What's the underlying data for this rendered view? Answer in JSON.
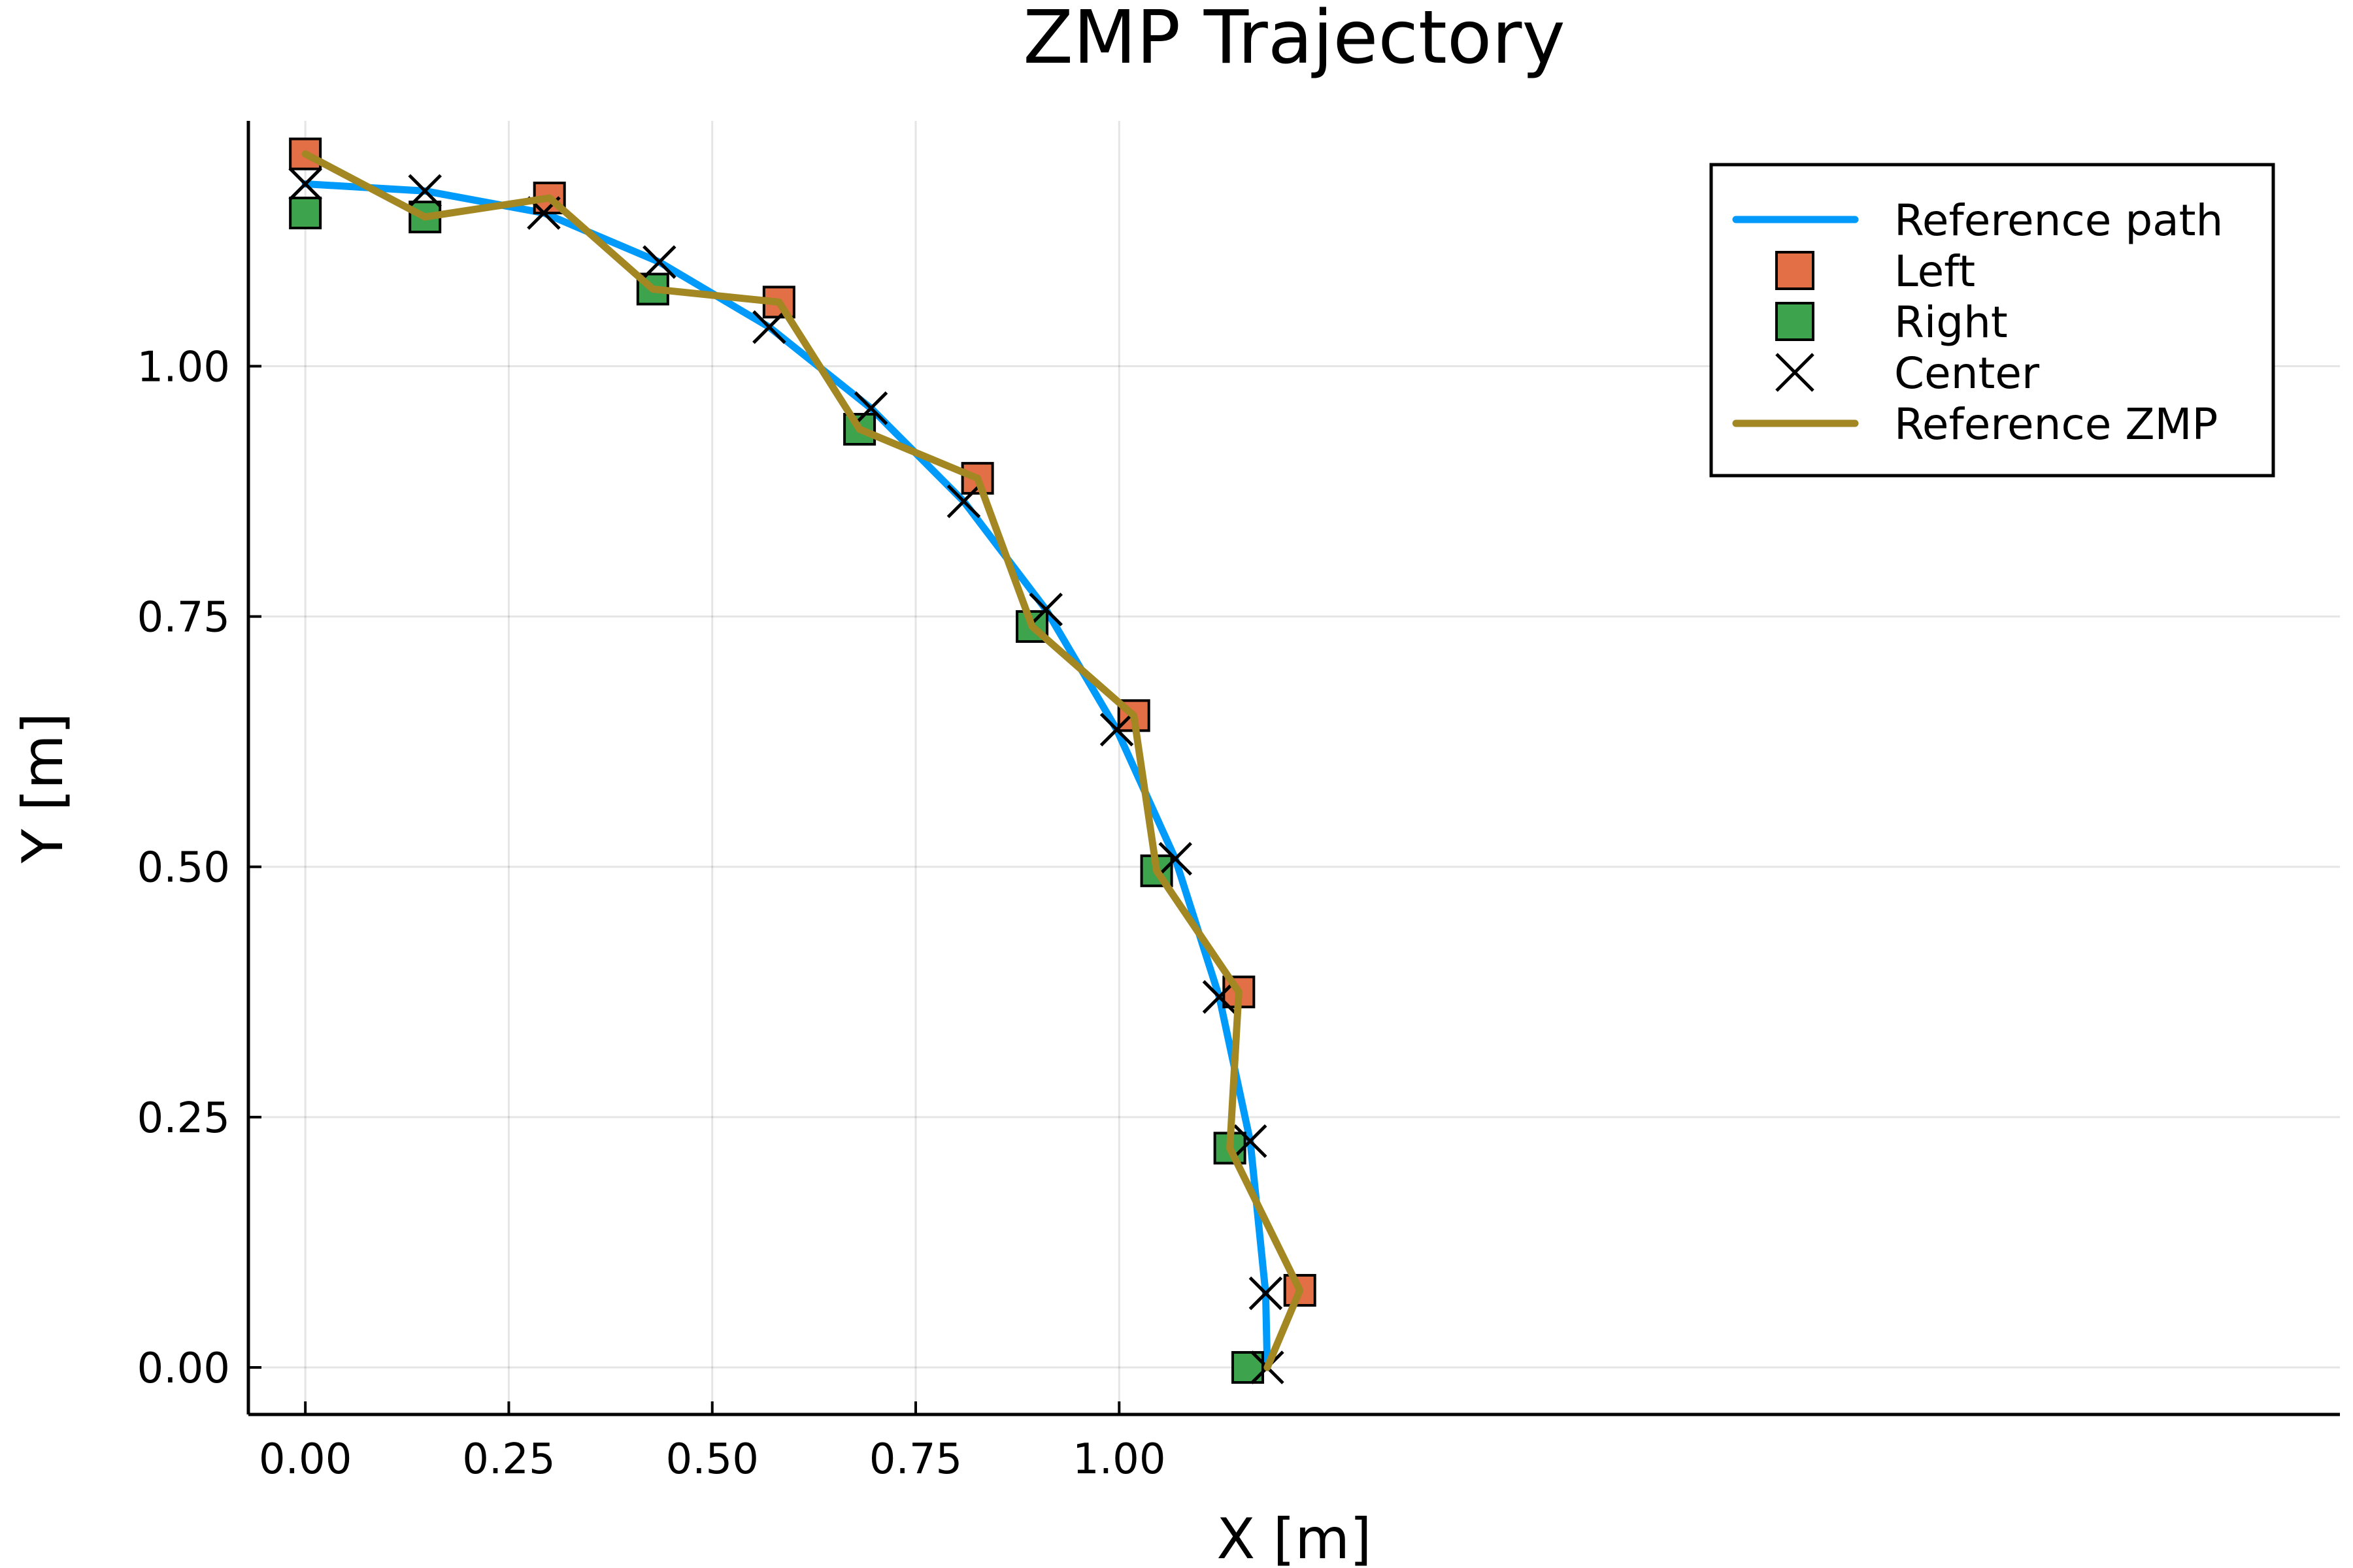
{
  "chart_data": {
    "type": "line",
    "title": "ZMP Trajectory",
    "xlabel": "X [m]",
    "ylabel": "Y [m]",
    "xlim": [
      -0.07,
      2.5
    ],
    "ylim": [
      -0.047,
      1.245
    ],
    "x_ticks": [
      0.0,
      0.25,
      0.5,
      0.75,
      1.0
    ],
    "x_tick_labels": [
      "0.00",
      "0.25",
      "0.50",
      "0.75",
      "1.00"
    ],
    "y_ticks": [
      0.0,
      0.25,
      0.5,
      0.75,
      1.0
    ],
    "y_tick_labels": [
      "0.00",
      "0.25",
      "0.50",
      "0.75",
      "1.00"
    ],
    "grid": true,
    "legend_position": "top-right",
    "series": [
      {
        "name": "Reference path",
        "kind": "line",
        "color": "#009AFA",
        "points": [
          [
            0.0,
            1.182
          ],
          [
            0.147,
            1.175
          ],
          [
            0.293,
            1.153
          ],
          [
            0.435,
            1.104
          ],
          [
            0.57,
            1.039
          ],
          [
            0.695,
            0.958
          ],
          [
            0.809,
            0.865
          ],
          [
            0.91,
            0.757
          ],
          [
            0.997,
            0.637
          ],
          [
            1.069,
            0.508
          ],
          [
            1.123,
            0.37
          ],
          [
            1.161,
            0.226
          ],
          [
            1.18,
            0.074
          ],
          [
            1.182,
            0.0
          ]
        ]
      },
      {
        "name": "Left",
        "kind": "scatter",
        "marker": "square",
        "color": "#E26F46",
        "points": [
          [
            0.0,
            1.212
          ],
          [
            0.3,
            1.168
          ],
          [
            0.582,
            1.064
          ],
          [
            0.826,
            0.888
          ],
          [
            1.018,
            0.651
          ],
          [
            1.147,
            0.375
          ],
          [
            1.222,
            0.077
          ]
        ]
      },
      {
        "name": "Right",
        "kind": "scatter",
        "marker": "square",
        "color": "#3DA44D",
        "points": [
          [
            0.0,
            1.153
          ],
          [
            0.147,
            1.149
          ],
          [
            0.427,
            1.077
          ],
          [
            0.681,
            0.937
          ],
          [
            0.893,
            0.74
          ],
          [
            1.046,
            0.496
          ],
          [
            1.136,
            0.219
          ],
          [
            1.158,
            0.0
          ]
        ]
      },
      {
        "name": "Center",
        "kind": "scatter",
        "marker": "x",
        "color": "#000000",
        "points": [
          [
            0.0,
            1.182
          ],
          [
            0.147,
            1.175
          ],
          [
            0.293,
            1.153
          ],
          [
            0.435,
            1.104
          ],
          [
            0.57,
            1.039
          ],
          [
            0.695,
            0.958
          ],
          [
            0.809,
            0.865
          ],
          [
            0.91,
            0.757
          ],
          [
            0.997,
            0.637
          ],
          [
            1.069,
            0.508
          ],
          [
            1.123,
            0.37
          ],
          [
            1.161,
            0.226
          ],
          [
            1.18,
            0.074
          ],
          [
            1.182,
            0.0
          ]
        ]
      },
      {
        "name": "Reference ZMP",
        "kind": "line",
        "color": "#A28723",
        "points": [
          [
            0.0,
            1.212
          ],
          [
            0.147,
            1.149
          ],
          [
            0.3,
            1.168
          ],
          [
            0.427,
            1.077
          ],
          [
            0.582,
            1.064
          ],
          [
            0.681,
            0.937
          ],
          [
            0.826,
            0.888
          ],
          [
            0.893,
            0.74
          ],
          [
            1.018,
            0.651
          ],
          [
            1.046,
            0.496
          ],
          [
            1.147,
            0.375
          ],
          [
            1.136,
            0.219
          ],
          [
            1.222,
            0.077
          ],
          [
            1.182,
            0.0
          ]
        ]
      }
    ]
  }
}
